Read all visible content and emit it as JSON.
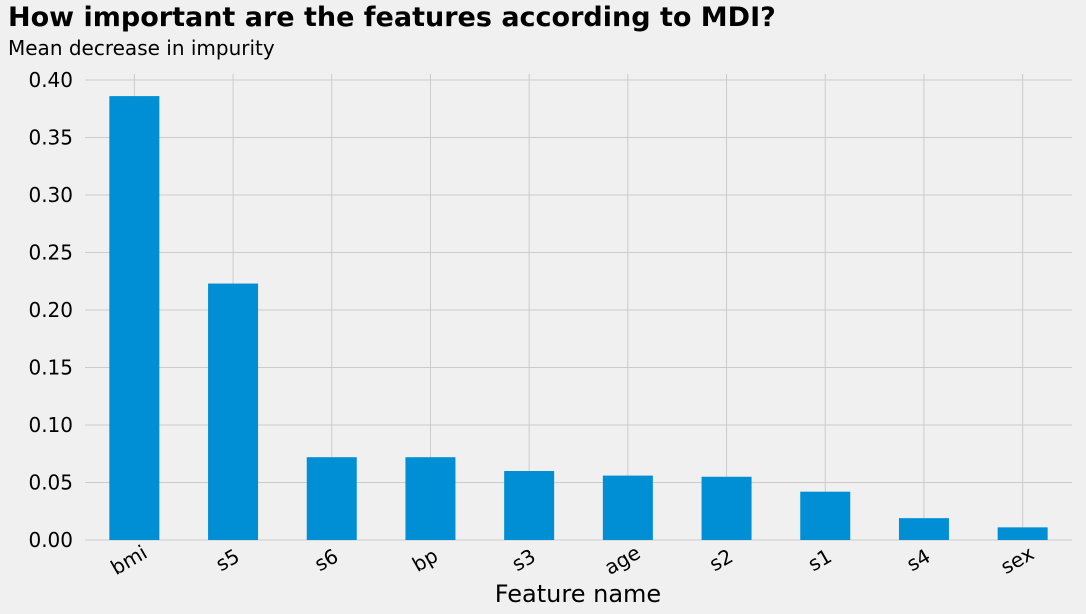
{
  "chart_data": {
    "type": "bar",
    "title": "How important are the features according to MDI?",
    "subtitle": "Mean decrease in impurity",
    "xlabel": "Feature name",
    "ylabel": "",
    "categories": [
      "bmi",
      "s5",
      "s6",
      "bp",
      "s3",
      "age",
      "s2",
      "s1",
      "s4",
      "sex"
    ],
    "values": [
      0.386,
      0.223,
      0.072,
      0.072,
      0.06,
      0.056,
      0.055,
      0.042,
      0.019,
      0.011
    ],
    "ylim": [
      0,
      0.4
    ],
    "yticks": [
      "0.00",
      "0.05",
      "0.10",
      "0.15",
      "0.20",
      "0.25",
      "0.30",
      "0.35",
      "0.40"
    ],
    "grid": true,
    "bar_color": "#008fd5",
    "grid_color": "#cbcbcb",
    "background": "#f0f0f0"
  }
}
